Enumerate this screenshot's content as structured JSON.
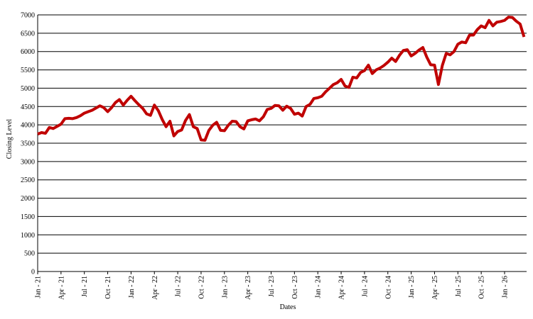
{
  "chart_data": {
    "type": "line",
    "x_label": "Dates",
    "y_label": "Closing Level",
    "categories": [
      "Jan - 21",
      null,
      null,
      null,
      null,
      null,
      "Apr - 21",
      null,
      null,
      null,
      null,
      null,
      "Jul - 21",
      null,
      null,
      null,
      null,
      null,
      "Oct - 21",
      null,
      null,
      null,
      null,
      null,
      "Jan - 22",
      null,
      null,
      null,
      null,
      null,
      "Apr - 22",
      null,
      null,
      null,
      null,
      null,
      "Jul - 22",
      null,
      null,
      null,
      null,
      null,
      "Oct - 22",
      null,
      null,
      null,
      null,
      null,
      "Jan - 23",
      null,
      null,
      null,
      null,
      null,
      "Apr - 23",
      null,
      null,
      null,
      null,
      null,
      "Jul - 23",
      null,
      null,
      null,
      null,
      null,
      "Oct - 23",
      null,
      null,
      null,
      null,
      null,
      "Jan - 24",
      null,
      null,
      null,
      null,
      null,
      "Apr - 24",
      null,
      null,
      null,
      null,
      null,
      "Jul - 24",
      null,
      null,
      null,
      null,
      null,
      "Oct - 24",
      null,
      null,
      null,
      null,
      null,
      "Jan - 25",
      null,
      null,
      null,
      null,
      null,
      "Apr - 25",
      null,
      null,
      null,
      null,
      null,
      "Jul - 25",
      null,
      null,
      null,
      null,
      null,
      "Oct - 25",
      null,
      null,
      null,
      null,
      null,
      "Jan - 26",
      null,
      null,
      null,
      null,
      null
    ],
    "series": [
      {
        "color": "#c00000",
        "values": [
          3750,
          3790,
          3770,
          3930,
          3900,
          3960,
          4020,
          4170,
          4180,
          4170,
          4200,
          4250,
          4320,
          4360,
          4400,
          4460,
          4520,
          4470,
          4360,
          4470,
          4610,
          4690,
          4540,
          4670,
          4780,
          4660,
          4550,
          4450,
          4300,
          4260,
          4540,
          4390,
          4150,
          3950,
          4100,
          3700,
          3820,
          3860,
          4120,
          4280,
          3950,
          3900,
          3590,
          3580,
          3850,
          3990,
          4070,
          3850,
          3840,
          3990,
          4100,
          4090,
          3950,
          3890,
          4110,
          4140,
          4160,
          4110,
          4220,
          4420,
          4450,
          4530,
          4520,
          4400,
          4510,
          4450,
          4290,
          4320,
          4240,
          4500,
          4560,
          4720,
          4740,
          4780,
          4900,
          5000,
          5100,
          5150,
          5240,
          5060,
          5020,
          5300,
          5280,
          5430,
          5480,
          5630,
          5400,
          5500,
          5550,
          5620,
          5710,
          5820,
          5730,
          5900,
          6030,
          6050,
          5880,
          5950,
          6040,
          6110,
          5850,
          5640,
          5630,
          5100,
          5620,
          5950,
          5910,
          6000,
          6200,
          6260,
          6240,
          6450,
          6450,
          6600,
          6700,
          6650,
          6850,
          6700,
          6800,
          6820,
          6850,
          6940,
          6930,
          6830,
          6750,
          6400
        ]
      }
    ],
    "ylim": [
      0,
      7000
    ],
    "yticks": [
      0,
      500,
      1000,
      1500,
      2000,
      2500,
      3000,
      3500,
      4000,
      4500,
      5000,
      5500,
      6000,
      6500,
      7000
    ],
    "grid": true
  }
}
